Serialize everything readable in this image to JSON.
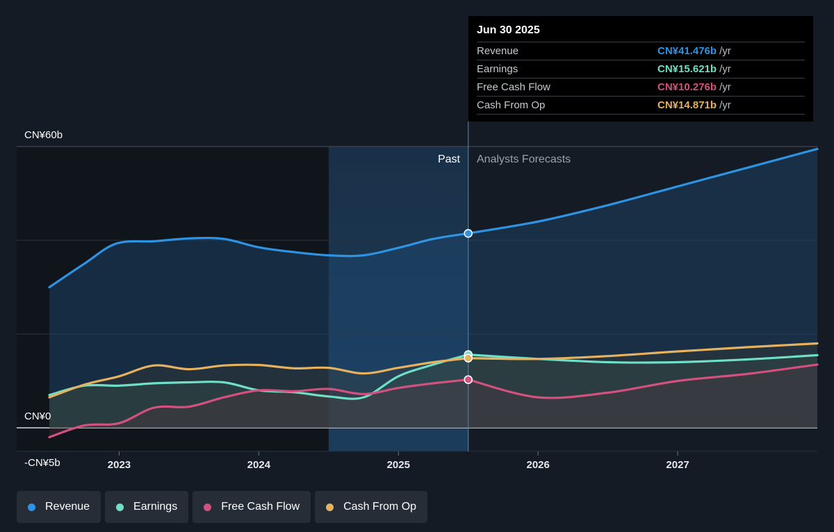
{
  "chart_data": {
    "type": "line",
    "y_axis": {
      "ticks": [
        {
          "label": "CN¥60b",
          "value": 60
        },
        {
          "label": "CN¥0",
          "value": 0
        },
        {
          "label": "-CN¥5b",
          "value": -5
        }
      ],
      "ylim": [
        -5,
        60
      ]
    },
    "x_axis": {
      "ticks": [
        "2023",
        "2024",
        "2025",
        "2026",
        "2027"
      ],
      "xlim": [
        2022.5,
        2028.0
      ]
    },
    "past_label": "Past",
    "forecast_label": "Analysts Forecasts",
    "divider_x": 2025.5,
    "series": [
      {
        "name": "Revenue",
        "color": "#2e93e2",
        "x": [
          2022.5,
          2022.75,
          2022.98,
          2023.25,
          2023.5,
          2023.75,
          2024.0,
          2024.25,
          2024.5,
          2024.75,
          2025.0,
          2025.25,
          2025.5
        ],
        "y": [
          30.0,
          35.0,
          39.3,
          39.8,
          40.4,
          40.3,
          38.5,
          37.5,
          36.8,
          36.8,
          38.4,
          40.3,
          41.476
        ],
        "forecast_x": [
          2025.5,
          2026.0,
          2026.5,
          2027.0,
          2027.5,
          2028.0
        ],
        "forecast_y": [
          41.476,
          44.0,
          47.5,
          51.5,
          55.5,
          59.5
        ]
      },
      {
        "name": "Earnings",
        "color": "#6fe0c6",
        "x": [
          2022.5,
          2022.75,
          2023.0,
          2023.25,
          2023.5,
          2023.75,
          2024.0,
          2024.25,
          2024.5,
          2024.75,
          2025.0,
          2025.25,
          2025.5
        ],
        "y": [
          7.0,
          9.0,
          9.0,
          9.5,
          9.7,
          9.7,
          8.0,
          7.6,
          6.7,
          6.5,
          11.0,
          13.5,
          15.621
        ],
        "forecast_x": [
          2025.5,
          2026.0,
          2026.5,
          2027.0,
          2027.5,
          2028.0
        ],
        "forecast_y": [
          15.621,
          14.7,
          14.0,
          14.0,
          14.6,
          15.5
        ]
      },
      {
        "name": "Free Cash Flow",
        "color": "#d3517f",
        "x": [
          2022.5,
          2022.75,
          2023.0,
          2023.25,
          2023.5,
          2023.75,
          2024.0,
          2024.25,
          2024.5,
          2024.75,
          2025.0,
          2025.25,
          2025.5
        ],
        "y": [
          -2.0,
          0.5,
          1.0,
          4.3,
          4.5,
          6.5,
          8.0,
          7.8,
          8.3,
          7.2,
          8.5,
          9.5,
          10.276
        ],
        "forecast_x": [
          2025.5,
          2026.0,
          2026.5,
          2027.0,
          2027.5,
          2028.0
        ],
        "forecast_y": [
          10.276,
          6.5,
          7.5,
          10.0,
          11.5,
          13.5
        ]
      },
      {
        "name": "Cash From Op",
        "color": "#e6b260",
        "x": [
          2022.5,
          2022.75,
          2023.0,
          2023.25,
          2023.5,
          2023.75,
          2024.0,
          2024.25,
          2024.5,
          2024.75,
          2025.0,
          2025.25,
          2025.5
        ],
        "y": [
          6.5,
          9.2,
          11.0,
          13.3,
          12.5,
          13.3,
          13.4,
          12.7,
          12.8,
          11.6,
          12.8,
          14.0,
          14.871
        ],
        "forecast_x": [
          2025.5,
          2026.0,
          2026.5,
          2027.0,
          2027.5,
          2028.0
        ],
        "forecast_y": [
          14.871,
          14.7,
          15.3,
          16.3,
          17.2,
          18.0
        ]
      }
    ]
  },
  "tooltip": {
    "date": "Jun 30 2025",
    "rows": [
      {
        "name": "Revenue",
        "value": "CN¥41.476b",
        "unit": "/yr",
        "color": "#2e93e2"
      },
      {
        "name": "Earnings",
        "value": "CN¥15.621b",
        "unit": "/yr",
        "color": "#6fe0c6"
      },
      {
        "name": "Free Cash Flow",
        "value": "CN¥10.276b",
        "unit": "/yr",
        "color": "#d3517f"
      },
      {
        "name": "Cash From Op",
        "value": "CN¥14.871b",
        "unit": "/yr",
        "color": "#e6b260"
      }
    ]
  },
  "legend": [
    {
      "label": "Revenue",
      "color": "#2e93e2"
    },
    {
      "label": "Earnings",
      "color": "#6fe0c6"
    },
    {
      "label": "Free Cash Flow",
      "color": "#d3517f"
    },
    {
      "label": "Cash From Op",
      "color": "#e6b260"
    }
  ]
}
